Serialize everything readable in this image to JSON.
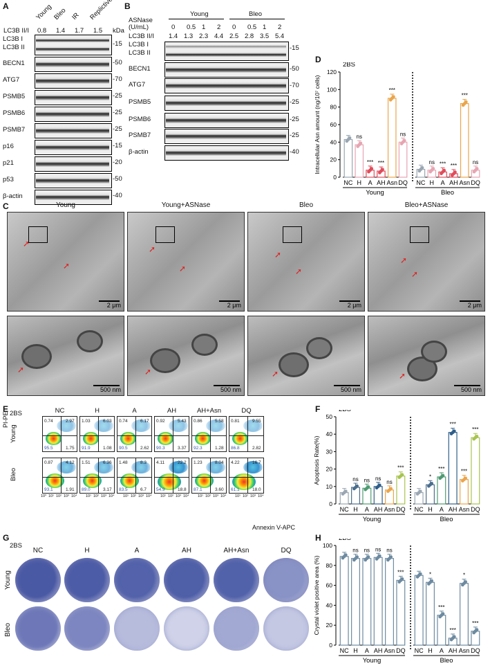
{
  "panels": {
    "A": "A",
    "B": "B",
    "C": "C",
    "D": "D",
    "E": "E",
    "F": "F",
    "G": "G",
    "H": "H"
  },
  "panelA": {
    "lanes": [
      "Young",
      "Bleo",
      "IR",
      "Replictive"
    ],
    "ratio_label": "LC3B II/I",
    "ratios": [
      "0.8",
      "1.4",
      "1.7",
      "1.5"
    ],
    "kda": "kDa",
    "rows": [
      "LC3B I",
      "LC3B II",
      "BECN1",
      "ATG7",
      "PSMB5",
      "PSMB6",
      "PSMB7",
      "p16",
      "p21",
      "p53",
      "β-actin"
    ],
    "markers": [
      "15",
      "50",
      "70",
      "25",
      "25",
      "25",
      "15",
      "20",
      "50",
      "40"
    ]
  },
  "panelB": {
    "asnase_label": "ASNase",
    "units": "(U/mL)",
    "groups": [
      "Young",
      "Bleo"
    ],
    "doses": [
      "0",
      "0.5",
      "1",
      "2",
      "0",
      "0.5",
      "1",
      "2"
    ],
    "ratio_label": "LC3B II/I",
    "ratios": [
      "1.4",
      "1.3",
      "2.3",
      "4.4",
      "2.5",
      "2.8",
      "3.5",
      "5.4"
    ],
    "rows": [
      "LC3B I",
      "LC3B II",
      "BECN1",
      "ATG7",
      "PSMB5",
      "PSMB6",
      "PSMB7",
      "β-actin"
    ],
    "markers": [
      "15",
      "50",
      "70",
      "25",
      "25",
      "25",
      "40"
    ]
  },
  "panelC": {
    "titles": [
      "Young",
      "Young+ASNase",
      "Bleo",
      "Bleo+ASNase"
    ],
    "scale_top": "2 μm",
    "scale_bottom": "500 nm"
  },
  "panelE": {
    "cell": "2BS",
    "columns": [
      "NC",
      "H",
      "A",
      "AH",
      "AH+Asn",
      "DQ"
    ],
    "rows": [
      "Young",
      "Bleo"
    ],
    "ylabel": "PI-PE",
    "xlabel": "Annexin V-APC",
    "young": [
      [
        "0.74",
        "2.97",
        "95.5",
        "1.75"
      ],
      [
        "1.03",
        "6.03",
        "91.9",
        "1.08"
      ],
      [
        "0.74",
        "6.17",
        "90.5",
        "2.62"
      ],
      [
        "0.92",
        "5.43",
        "90.3",
        "3.37"
      ],
      [
        "0.86",
        "5.58",
        "92.3",
        "1.28"
      ],
      [
        "0.81",
        "9.55",
        "86.8",
        "2.82"
      ]
    ],
    "bleo": [
      [
        "0.87",
        "4.12",
        "93.1",
        "1.91"
      ],
      [
        "1.51",
        "6.36",
        "89.0",
        "3.17"
      ],
      [
        "1.48",
        "8.3",
        "83.5",
        "6.7"
      ],
      [
        "4.11",
        "22.2",
        "54.9",
        "18.8"
      ],
      [
        "1.23",
        "8.04",
        "87.1",
        "3.60"
      ],
      [
        "4.22",
        "16.7",
        "61.1",
        "18.0"
      ]
    ],
    "axis_ticks": [
      "10⁰",
      "10¹",
      "10²",
      "10³",
      "10⁴"
    ]
  },
  "panelG": {
    "cell": "2BS",
    "columns": [
      "NC",
      "H",
      "A",
      "AH",
      "AH+Asn",
      "DQ"
    ],
    "rows": [
      "Young",
      "Bleo"
    ]
  },
  "chart_data": [
    {
      "type": "bar",
      "panel": "D",
      "title": "2BS",
      "ylabel": "Intracellular Asn amount (ng/10⁷ cells)",
      "categories": [
        "NC",
        "H",
        "A",
        "AH",
        "Asn",
        "DQ"
      ],
      "groups": [
        "Young",
        "Bleo"
      ],
      "ylim": [
        0,
        120
      ],
      "yticks": [
        "0",
        "20",
        "40",
        "60",
        "80",
        "100",
        "120"
      ],
      "series": [
        {
          "name": "Young",
          "values": [
            43,
            37,
            8,
            7,
            90,
            40
          ],
          "sig": [
            "",
            "ns",
            "***",
            "***",
            "***",
            "ns"
          ]
        },
        {
          "name": "Bleo",
          "values": [
            9,
            8,
            6,
            4,
            84,
            8
          ],
          "sig": [
            "",
            "ns",
            "***",
            "***",
            "***",
            "ns"
          ]
        }
      ],
      "colors": [
        "#9aa7b2",
        "#e6a5b1",
        "#e04c5a",
        "#e04c5a",
        "#eaa54b",
        "#e6a5b1"
      ]
    },
    {
      "type": "bar",
      "panel": "F",
      "title": "2BS",
      "ylabel": "Apoptosis Rate(%)",
      "categories": [
        "NC",
        "H",
        "A",
        "AH",
        "Asn",
        "DQ"
      ],
      "groups": [
        "Young",
        "Bleo"
      ],
      "ylim": [
        0,
        50
      ],
      "yticks": [
        "0",
        "10",
        "20",
        "30",
        "40",
        "50"
      ],
      "series": [
        {
          "name": "Young",
          "values": [
            6.5,
            9.5,
            9.0,
            10.0,
            8.0,
            16.0
          ],
          "sig": [
            "",
            "ns",
            "ns",
            "ns",
            "ns",
            "***"
          ]
        },
        {
          "name": "Bleo",
          "values": [
            6.5,
            11.0,
            15.5,
            41.0,
            14.0,
            38.0
          ],
          "sig": [
            "",
            "*",
            "***",
            "***",
            "***",
            "***"
          ]
        }
      ],
      "colors": [
        "#9aa7b2",
        "#4a6d8c",
        "#4f9a72",
        "#2f5f8a",
        "#eaa54b",
        "#a7c44f"
      ]
    },
    {
      "type": "bar",
      "panel": "H",
      "title": "2BS",
      "ylabel": "Crystal violet positive area (%)",
      "categories": [
        "NC",
        "H",
        "A",
        "AH",
        "Asn",
        "DQ"
      ],
      "groups": [
        "Young",
        "Bleo"
      ],
      "ylim": [
        0,
        100
      ],
      "yticks": [
        "0",
        "20",
        "40",
        "60",
        "80",
        "100"
      ],
      "series": [
        {
          "name": "Young",
          "values": [
            89,
            87,
            87,
            88,
            87,
            65
          ],
          "sig": [
            "",
            "ns",
            "ns",
            "ns",
            "ns",
            "***"
          ]
        },
        {
          "name": "Bleo",
          "values": [
            70,
            63,
            30,
            7,
            62,
            14
          ],
          "sig": [
            "",
            "*",
            "***",
            "***",
            "*",
            "***"
          ]
        }
      ],
      "colors": [
        "#6d8aa0",
        "#6d8aa0",
        "#6d8aa0",
        "#6d8aa0",
        "#6d8aa0",
        "#6d8aa0"
      ]
    }
  ]
}
